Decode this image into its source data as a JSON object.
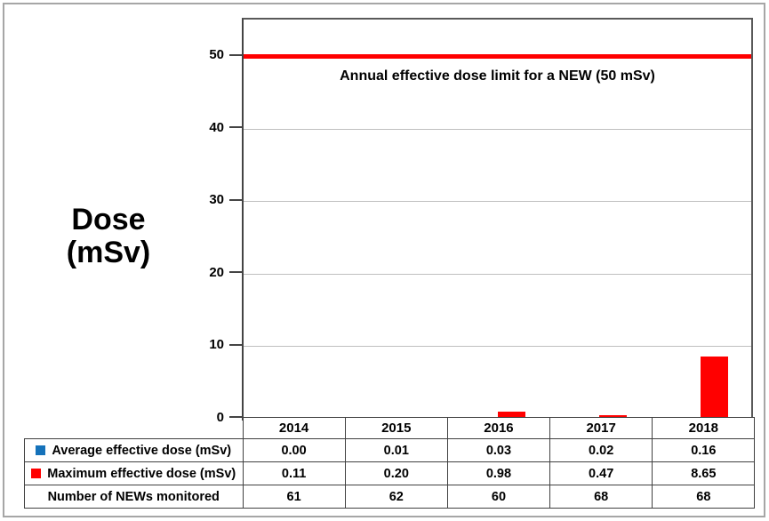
{
  "figure": {
    "y_axis_title_line1": "Dose",
    "y_axis_title_line2": "(mSv)"
  },
  "chart_data": {
    "type": "bar",
    "categories": [
      "2014",
      "2015",
      "2016",
      "2017",
      "2018"
    ],
    "series": [
      {
        "slug": "average",
        "name": "Average effective dose (mSv)",
        "color": "#1572BA",
        "values": [
          0.0,
          0.01,
          0.03,
          0.02,
          0.16
        ]
      },
      {
        "slug": "maximum",
        "name": "Maximum effective dose (mSv)",
        "color": "#FF0000",
        "values": [
          0.11,
          0.2,
          0.98,
          0.47,
          8.65
        ]
      }
    ],
    "title": "",
    "xlabel": "",
    "ylabel": "Dose (mSv)",
    "yticks": [
      0,
      10,
      20,
      30,
      40,
      50
    ],
    "ylim": [
      0,
      55.1
    ],
    "grid": true,
    "legend_position": "in-table-row-labels",
    "reference_line": {
      "value": 50,
      "label": "Annual effective dose limit for a NEW (50 mSv)",
      "color": "#FF0000"
    }
  },
  "data_table": {
    "rows": [
      {
        "slug": "average",
        "label": "Average effective dose (mSv)",
        "marker_color": "#1572BA",
        "cells": [
          "0.00",
          "0.01",
          "0.03",
          "0.02",
          "0.16"
        ]
      },
      {
        "slug": "maximum",
        "label": "Maximum effective dose (mSv)",
        "marker_color": "#FF0000",
        "cells": [
          "0.11",
          "0.20",
          "0.98",
          "0.47",
          "8.65"
        ]
      },
      {
        "slug": "news-monitored",
        "label": "Number of NEWs monitored",
        "marker_color": null,
        "cells": [
          "61",
          "62",
          "60",
          "68",
          "68"
        ]
      }
    ]
  },
  "colors": {
    "grid": "#BFBFBF",
    "axis": "#444444",
    "table_border": "#404040",
    "outer_border": "#A6A6A6"
  }
}
